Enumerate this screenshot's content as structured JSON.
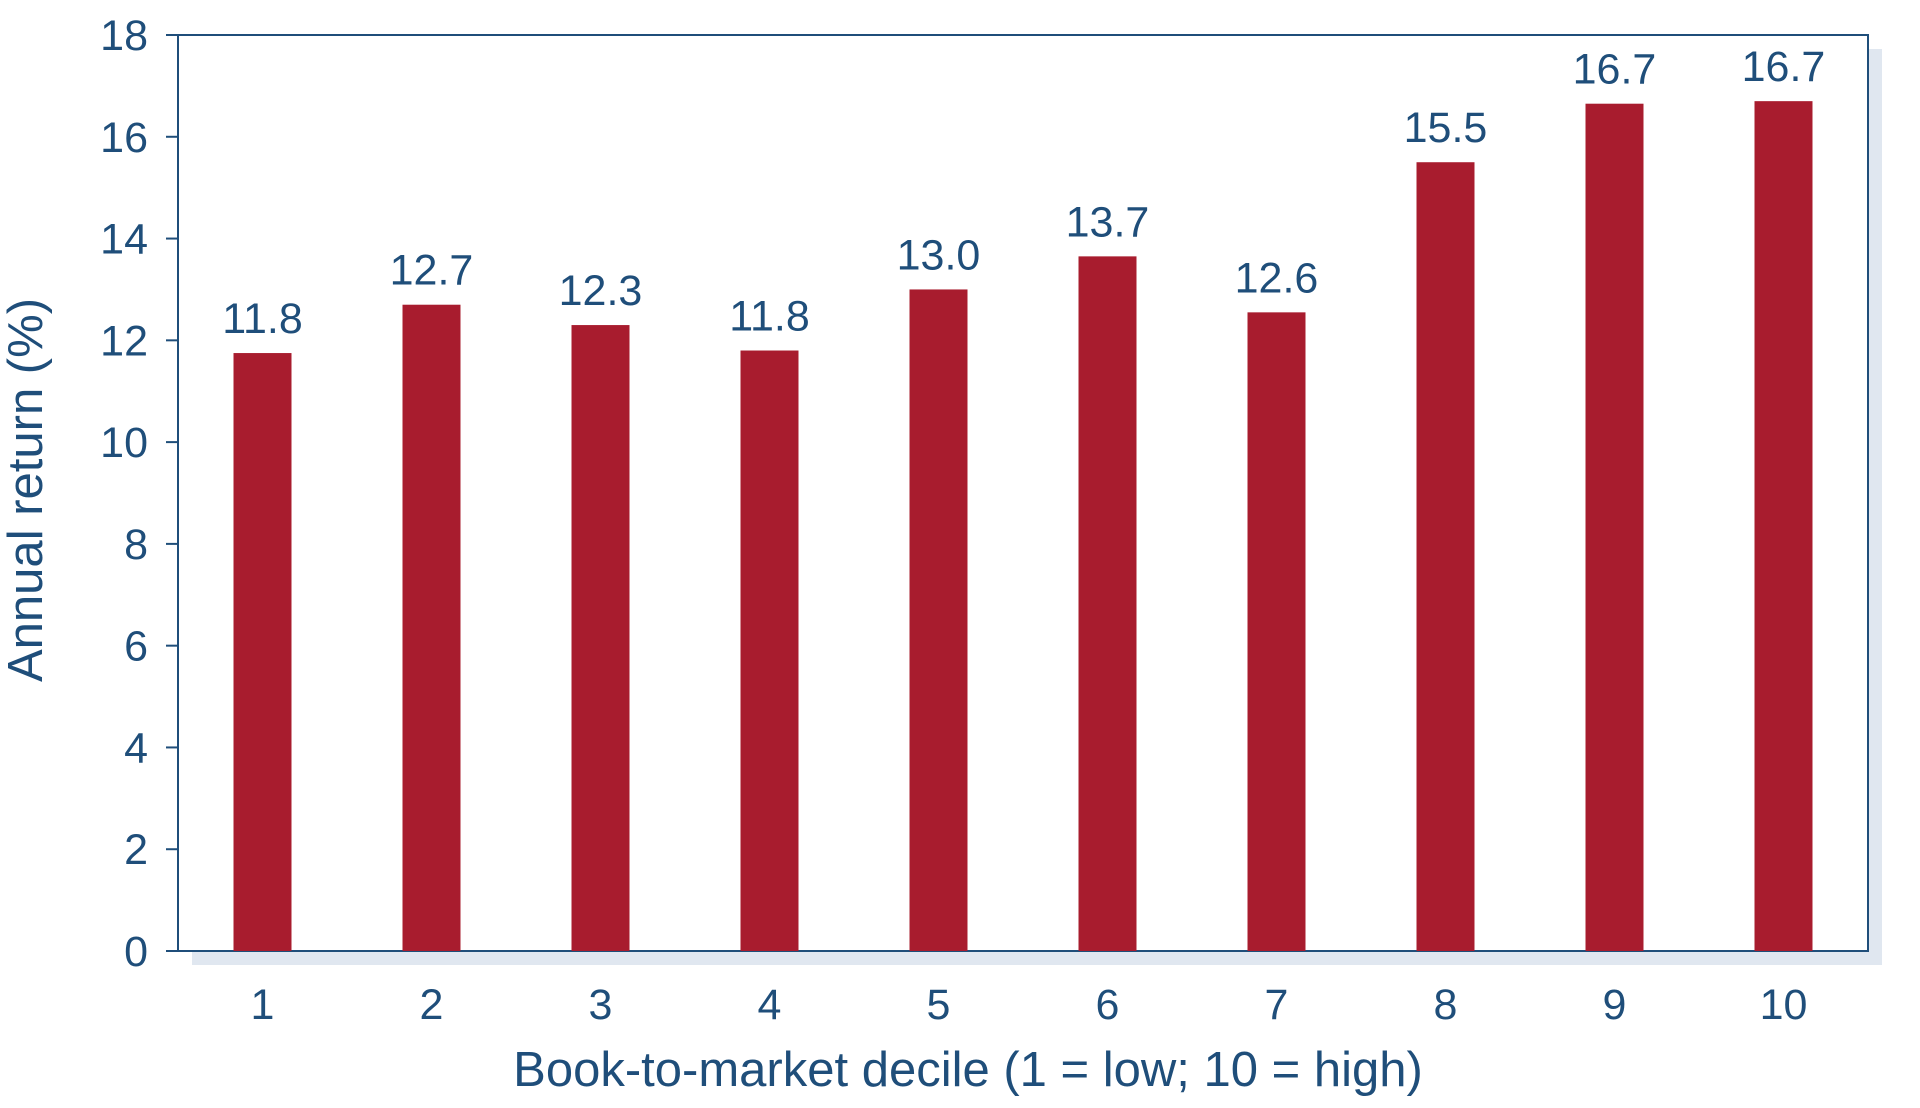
{
  "chart_data": {
    "type": "bar",
    "categories": [
      "1",
      "2",
      "3",
      "4",
      "5",
      "6",
      "7",
      "8",
      "9",
      "10"
    ],
    "values": [
      11.75,
      12.7,
      12.3,
      11.8,
      13.0,
      13.65,
      12.55,
      15.5,
      16.65,
      16.7
    ],
    "data_labels": [
      "11.8",
      "12.7",
      "12.3",
      "11.8",
      "13.0",
      "13.7",
      "12.6",
      "15.5",
      "16.7",
      "16.7"
    ],
    "title": "",
    "xlabel": "Book-to-market decile (1 = low; 10 = high)",
    "ylabel": "Annual return (%)",
    "ylim": [
      0,
      18
    ],
    "yticks": [
      "0",
      "2",
      "4",
      "6",
      "8",
      "10",
      "12",
      "14",
      "16",
      "18"
    ],
    "grid": false,
    "legend": "none",
    "colors": {
      "bar": "#a81c2e",
      "axis": "#1f4e7a",
      "text": "#1f4e7a",
      "frame_shadow": "#c7d3e3"
    }
  }
}
